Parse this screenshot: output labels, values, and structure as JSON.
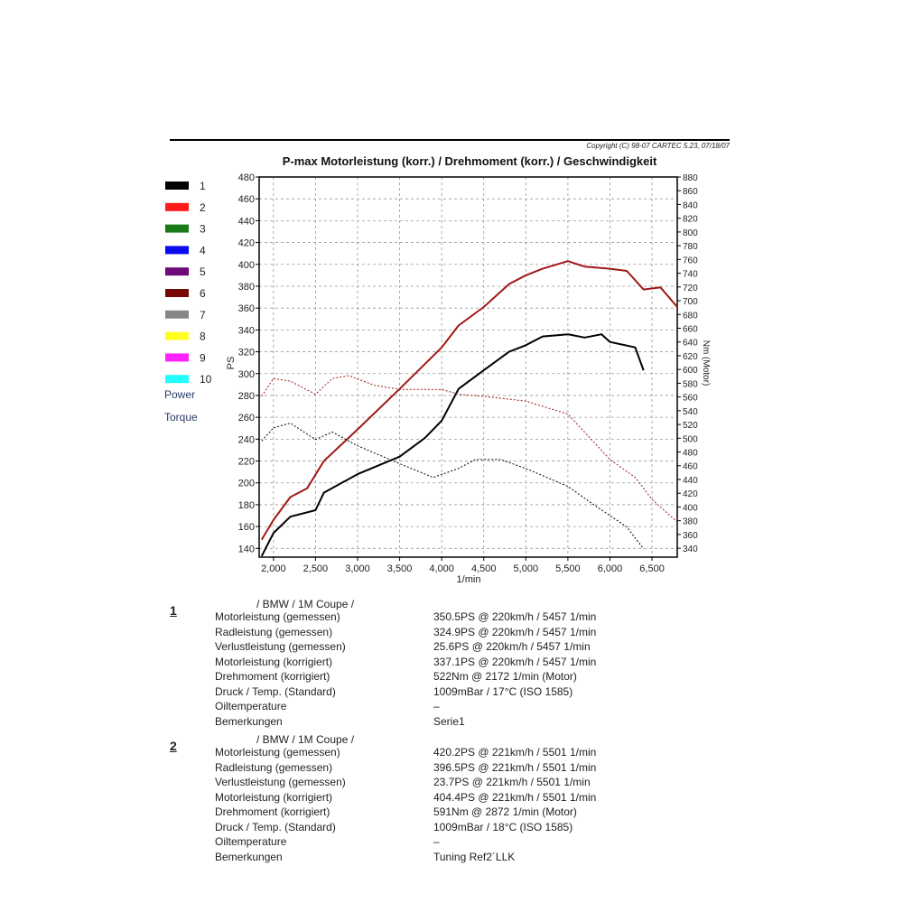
{
  "header": {
    "copyright": "Copyright (C) 98-07 CARTEC 5.23, 07/18/07",
    "title": "P-max Motorleistung (korr.) / Drehmoment (korr.) / Geschwindigkeit"
  },
  "legend": {
    "items": [
      {
        "label": "1",
        "color": "#000000"
      },
      {
        "label": "2",
        "color": "#ff1a1a"
      },
      {
        "label": "3",
        "color": "#1a7a1a"
      },
      {
        "label": "4",
        "color": "#0a0aee"
      },
      {
        "label": "5",
        "color": "#6e0a78"
      },
      {
        "label": "6",
        "color": "#780808"
      },
      {
        "label": "7",
        "color": "#868686"
      },
      {
        "label": "8",
        "color": "#ffff22"
      },
      {
        "label": "9",
        "color": "#ff22ff"
      },
      {
        "label": "10",
        "color": "#22ffff"
      }
    ],
    "power_label": "Power",
    "torque_label": "Torque"
  },
  "chart_data": {
    "type": "line",
    "title": "P-max Motorleistung (korr.) / Drehmoment (korr.) / Geschwindigkeit",
    "xlabel": "1/min",
    "ylabel": "PS",
    "y2label": "Nm (Motor)",
    "xlim": [
      1830,
      6800
    ],
    "ylim": [
      132,
      480
    ],
    "y2lim": [
      327,
      880
    ],
    "xticks": [
      "2,000",
      "2,500",
      "3,000",
      "3,500",
      "4,000",
      "4,500",
      "5,000",
      "5,500",
      "6,000",
      "6,500"
    ],
    "xtick_values": [
      2000,
      2500,
      3000,
      3500,
      4000,
      4500,
      5000,
      5500,
      6000,
      6500
    ],
    "yticks": [
      140,
      160,
      180,
      200,
      220,
      240,
      260,
      280,
      300,
      320,
      340,
      360,
      380,
      400,
      420,
      440,
      460,
      480
    ],
    "y2ticks": [
      340,
      360,
      380,
      400,
      420,
      440,
      460,
      480,
      500,
      520,
      540,
      560,
      580,
      600,
      620,
      640,
      660,
      680,
      700,
      720,
      740,
      760,
      780,
      800,
      820,
      840,
      860,
      880
    ],
    "grid": true,
    "legend_placement": "left",
    "series": [
      {
        "name": "1",
        "kind": "power",
        "axis": "left",
        "color": "#000000",
        "style": "solid",
        "x": [
          1860,
          2000,
          2200,
          2500,
          2600,
          3000,
          3500,
          3800,
          4000,
          4200,
          4500,
          4800,
          5000,
          5200,
          5500,
          5700,
          5900,
          6000,
          6300,
          6400
        ],
        "y": [
          133,
          154,
          169,
          175,
          191,
          208,
          224,
          241,
          257,
          286,
          303,
          320,
          326,
          334,
          336,
          333,
          336,
          329,
          324,
          303
        ]
      },
      {
        "name": "2",
        "kind": "power",
        "axis": "left",
        "color": "#a01818",
        "style": "solid",
        "x": [
          1860,
          2000,
          2200,
          2400,
          2600,
          3000,
          3500,
          4000,
          4200,
          4500,
          4800,
          5000,
          5200,
          5500,
          5700,
          6000,
          6200,
          6400,
          6600,
          6800
        ],
        "y": [
          148,
          166,
          187,
          195,
          220,
          249,
          286,
          324,
          344,
          361,
          382,
          390,
          396,
          403,
          398,
          396,
          394,
          377,
          379,
          361
        ]
      },
      {
        "name": "1",
        "kind": "torque",
        "axis": "right",
        "color": "#000000",
        "style": "dotted",
        "x": [
          1860,
          2000,
          2200,
          2500,
          2700,
          3000,
          3500,
          3900,
          4200,
          4400,
          4700,
          5000,
          5500,
          5800,
          6200,
          6400
        ],
        "y": [
          496,
          515,
          522,
          498,
          509,
          489,
          463,
          443,
          456,
          469,
          469,
          456,
          430,
          404,
          371,
          339
        ]
      },
      {
        "name": "2",
        "kind": "torque",
        "axis": "right",
        "color": "#a01818",
        "style": "dotted",
        "x": [
          1860,
          2000,
          2200,
          2500,
          2700,
          2900,
          3200,
          3500,
          4000,
          4200,
          4500,
          5000,
          5500,
          6000,
          6300,
          6500,
          6800
        ],
        "y": [
          561,
          587,
          583,
          564,
          587,
          591,
          577,
          571,
          571,
          564,
          561,
          554,
          535,
          469,
          443,
          411,
          378
        ]
      }
    ]
  },
  "runs": [
    {
      "number": "1",
      "vehicle": "/ BMW / 1M Coupe /",
      "rows": [
        {
          "label": "Motorleistung (gemessen)",
          "value": "350.5PS @ 220km/h / 5457 1/min"
        },
        {
          "label": "Radleistung (gemessen)",
          "value": "324.9PS @ 220km/h / 5457 1/min"
        },
        {
          "label": "Verlustleistung (gemessen)",
          "value": "25.6PS @ 220km/h / 5457 1/min"
        },
        {
          "label": "Motorleistung (korrigiert)",
          "value": "337.1PS @ 220km/h / 5457 1/min"
        },
        {
          "label": "Drehmoment (korrigiert)",
          "value": "522Nm @ 2172 1/min (Motor)"
        },
        {
          "label": "Druck / Temp. (Standard)",
          "value": "1009mBar / 17°C   (ISO 1585)"
        },
        {
          "label": "Oiltemperature",
          "value": "–"
        },
        {
          "label": "Bemerkungen",
          "value": "Serie1"
        }
      ]
    },
    {
      "number": "2",
      "vehicle": "/ BMW / 1M Coupe /",
      "rows": [
        {
          "label": "Motorleistung (gemessen)",
          "value": "420.2PS @ 221km/h / 5501 1/min"
        },
        {
          "label": "Radleistung (gemessen)",
          "value": "396.5PS @ 221km/h / 5501 1/min"
        },
        {
          "label": "Verlustleistung (gemessen)",
          "value": "23.7PS @ 221km/h / 5501 1/min"
        },
        {
          "label": "Motorleistung (korrigiert)",
          "value": "404.4PS @ 221km/h / 5501 1/min"
        },
        {
          "label": "Drehmoment (korrigiert)",
          "value": "591Nm @ 2872 1/min (Motor)"
        },
        {
          "label": "Druck / Temp. (Standard)",
          "value": "1009mBar / 18°C   (ISO 1585)"
        },
        {
          "label": "Oiltemperature",
          "value": "–"
        },
        {
          "label": "Bemerkungen",
          "value": "Tuning Ref2´LLK"
        }
      ]
    }
  ]
}
